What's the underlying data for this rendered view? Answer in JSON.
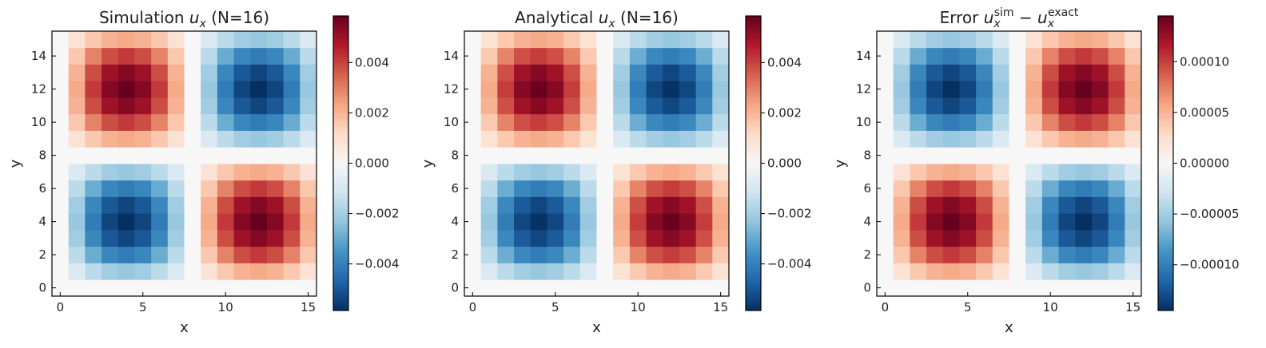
{
  "chart_data": [
    {
      "type": "heatmap",
      "title_parts": [
        {
          "text": "Simulation ",
          "style": "normal"
        },
        {
          "text": "u",
          "style": "italic"
        },
        {
          "text": "x",
          "style": "sub-italic"
        },
        {
          "text": " (N=16)",
          "style": "normal"
        }
      ],
      "xlabel": "x",
      "ylabel": "y",
      "x": [
        0,
        1,
        2,
        3,
        4,
        5,
        6,
        7,
        8,
        9,
        10,
        11,
        12,
        13,
        14,
        15
      ],
      "y": [
        0,
        1,
        2,
        3,
        4,
        5,
        6,
        7,
        8,
        9,
        10,
        11,
        12,
        13,
        14,
        15
      ],
      "x_ticks": [
        "0",
        "5",
        "10",
        "15"
      ],
      "y_ticks": [
        "0",
        "2",
        "4",
        "6",
        "8",
        "10",
        "12",
        "14"
      ],
      "colormap": "RdBu_r",
      "vmin": -0.00585,
      "vmax": 0.00585,
      "amplitude": 0.00585,
      "field": "-sin(2*pi*x/16) * sin(2*pi*y/16)",
      "colorbar_ticks": [
        {
          "value": 0.004,
          "label": "0.004"
        },
        {
          "value": 0.002,
          "label": "0.002"
        },
        {
          "value": 0.0,
          "label": "0.000"
        },
        {
          "value": -0.002,
          "label": "−0.002"
        },
        {
          "value": -0.004,
          "label": "−0.004"
        }
      ]
    },
    {
      "type": "heatmap",
      "title_parts": [
        {
          "text": "Analytical ",
          "style": "normal"
        },
        {
          "text": "u",
          "style": "italic"
        },
        {
          "text": "x",
          "style": "sub-italic"
        },
        {
          "text": " (N=16)",
          "style": "normal"
        }
      ],
      "xlabel": "x",
      "ylabel": "y",
      "x": [
        0,
        1,
        2,
        3,
        4,
        5,
        6,
        7,
        8,
        9,
        10,
        11,
        12,
        13,
        14,
        15
      ],
      "y": [
        0,
        1,
        2,
        3,
        4,
        5,
        6,
        7,
        8,
        9,
        10,
        11,
        12,
        13,
        14,
        15
      ],
      "x_ticks": [
        "0",
        "5",
        "10",
        "15"
      ],
      "y_ticks": [
        "0",
        "2",
        "4",
        "6",
        "8",
        "10",
        "12",
        "14"
      ],
      "colormap": "RdBu_r",
      "vmin": -0.00585,
      "vmax": 0.00585,
      "amplitude": 0.0058,
      "field": "-sin(2*pi*x/16) * sin(2*pi*y/16)",
      "colorbar_ticks": [
        {
          "value": 0.004,
          "label": "0.004"
        },
        {
          "value": 0.002,
          "label": "0.002"
        },
        {
          "value": 0.0,
          "label": "0.000"
        },
        {
          "value": -0.002,
          "label": "−0.002"
        },
        {
          "value": -0.004,
          "label": "−0.004"
        }
      ]
    },
    {
      "type": "heatmap",
      "title_parts": [
        {
          "text": "Error ",
          "style": "normal"
        },
        {
          "text": "u",
          "style": "italic"
        },
        {
          "text": "x",
          "style": "sub-italic"
        },
        {
          "text": "sim",
          "style": "sup"
        },
        {
          "text": " − ",
          "style": "normal"
        },
        {
          "text": "u",
          "style": "italic"
        },
        {
          "text": "x",
          "style": "sub-italic"
        },
        {
          "text": "exact",
          "style": "sup"
        }
      ],
      "xlabel": "x",
      "ylabel": "y",
      "x": [
        0,
        1,
        2,
        3,
        4,
        5,
        6,
        7,
        8,
        9,
        10,
        11,
        12,
        13,
        14,
        15
      ],
      "y": [
        0,
        1,
        2,
        3,
        4,
        5,
        6,
        7,
        8,
        9,
        10,
        11,
        12,
        13,
        14,
        15
      ],
      "x_ticks": [
        "0",
        "5",
        "10",
        "15"
      ],
      "y_ticks": [
        "0",
        "2",
        "4",
        "6",
        "8",
        "10",
        "12",
        "14"
      ],
      "colormap": "RdBu_r",
      "vmin": -0.000145,
      "vmax": 0.000145,
      "amplitude": 0.000145,
      "field": "sin(2*pi*x/16) * sin(2*pi*y/16)",
      "colorbar_ticks": [
        {
          "value": 0.0001,
          "label": "0.00010"
        },
        {
          "value": 5e-05,
          "label": "0.00005"
        },
        {
          "value": 0.0,
          "label": "0.00000"
        },
        {
          "value": -5e-05,
          "label": "−0.00005"
        },
        {
          "value": -0.0001,
          "label": "−0.00010"
        }
      ]
    }
  ]
}
